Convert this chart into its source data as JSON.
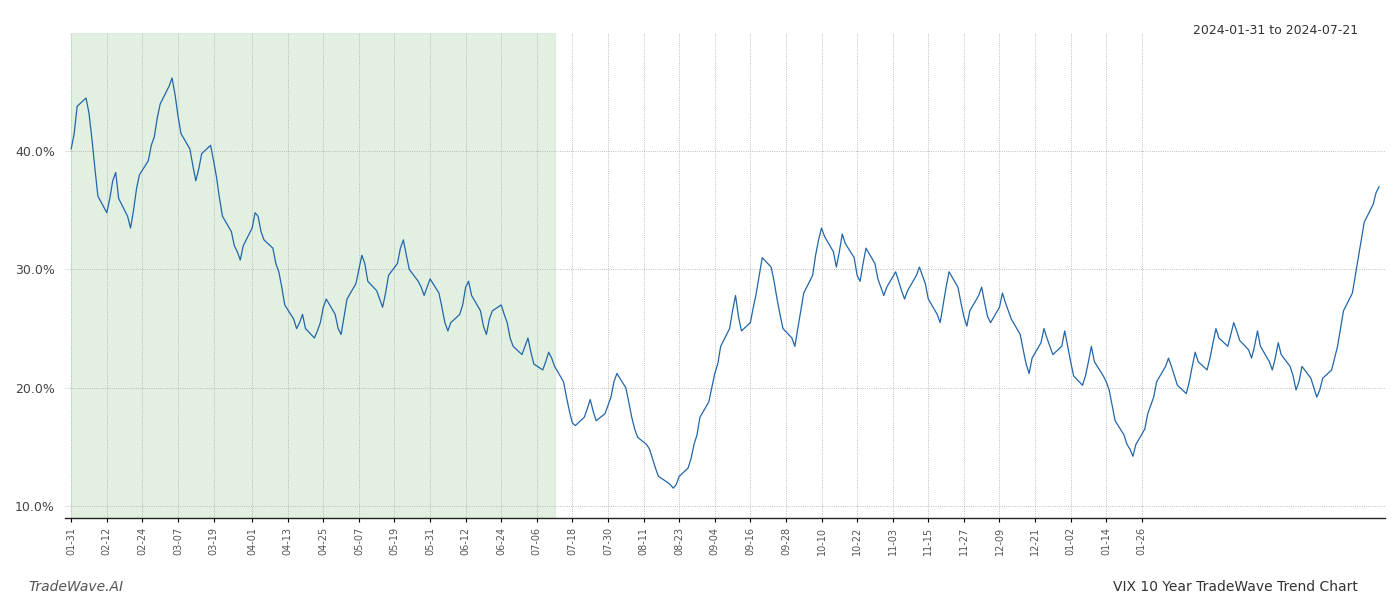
{
  "title_right": "2024-01-31 to 2024-07-21",
  "footer_left": "TradeWave.AI",
  "footer_right": "VIX 10 Year TradeWave Trend Chart",
  "line_color": "#2266aa",
  "shading_color": "#d6ead6",
  "shading_alpha": 0.7,
  "background_color": "#ffffff",
  "ylim": [
    9.0,
    50.0
  ],
  "yticks": [
    10.0,
    20.0,
    30.0,
    40.0
  ],
  "shade_start_date": "2024-01-31",
  "shade_end_date": "2024-07-12",
  "data_start_date": "2024-01-31",
  "xtick_labels": [
    "01-31",
    "02-12",
    "02-24",
    "03-07",
    "03-19",
    "04-01",
    "04-13",
    "04-25",
    "05-07",
    "05-19",
    "05-31",
    "06-12",
    "06-24",
    "07-06",
    "07-18",
    "07-30",
    "08-11",
    "08-23",
    "09-04",
    "09-16",
    "09-28",
    "10-10",
    "10-22",
    "11-03",
    "11-15",
    "11-27",
    "12-09",
    "12-21",
    "01-02",
    "01-14",
    "01-26"
  ],
  "xtick_dates": [
    "2024-01-31",
    "2024-02-12",
    "2024-02-24",
    "2024-03-07",
    "2024-03-19",
    "2024-04-01",
    "2024-04-13",
    "2024-04-25",
    "2024-05-07",
    "2024-05-19",
    "2024-05-31",
    "2024-06-12",
    "2024-06-24",
    "2024-07-06",
    "2024-07-18",
    "2024-07-30",
    "2024-08-11",
    "2024-08-23",
    "2024-09-04",
    "2024-09-16",
    "2024-09-28",
    "2024-10-10",
    "2024-10-22",
    "2024-11-03",
    "2024-11-15",
    "2024-11-27",
    "2024-12-09",
    "2024-12-21",
    "2025-01-02",
    "2025-01-14",
    "2025-01-26"
  ],
  "values": [
    40.2,
    41.5,
    43.8,
    44.5,
    43.2,
    41.0,
    38.5,
    36.2,
    34.8,
    36.0,
    37.5,
    38.2,
    36.0,
    34.5,
    33.5,
    35.0,
    36.8,
    38.0,
    39.2,
    40.5,
    41.2,
    42.8,
    44.0,
    45.5,
    46.2,
    44.8,
    43.0,
    41.5,
    40.2,
    38.8,
    37.5,
    38.5,
    39.8,
    40.5,
    39.2,
    37.8,
    36.0,
    34.5,
    33.2,
    32.0,
    31.5,
    30.8,
    32.0,
    33.5,
    34.8,
    34.5,
    33.2,
    32.5,
    31.8,
    30.5,
    29.8,
    28.5,
    27.0,
    25.8,
    25.0,
    25.5,
    26.2,
    25.0,
    24.2,
    24.8,
    25.5,
    26.8,
    27.5,
    26.2,
    25.0,
    24.5,
    26.0,
    27.5,
    28.8,
    30.0,
    31.2,
    30.5,
    29.0,
    28.2,
    27.5,
    26.8,
    28.0,
    29.5,
    30.5,
    31.8,
    32.5,
    31.2,
    30.0,
    29.0,
    28.5,
    27.8,
    28.5,
    29.2,
    28.0,
    26.8,
    25.5,
    24.8,
    25.5,
    26.2,
    27.0,
    28.5,
    29.0,
    27.8,
    26.5,
    25.2,
    24.5,
    25.8,
    26.5,
    27.0,
    26.2,
    25.5,
    24.2,
    23.5,
    22.8,
    23.5,
    24.2,
    23.0,
    22.0,
    21.5,
    22.2,
    23.0,
    22.5,
    21.8,
    20.5,
    19.2,
    18.0,
    17.0,
    16.8,
    17.5,
    18.2,
    19.0,
    18.0,
    17.2,
    17.8,
    18.5,
    19.2,
    20.5,
    21.2,
    20.0,
    18.8,
    17.5,
    16.5,
    15.8,
    15.2,
    14.8,
    14.0,
    13.2,
    12.5,
    12.0,
    11.8,
    11.5,
    11.8,
    12.5,
    13.2,
    14.0,
    15.2,
    16.0,
    17.5,
    18.8,
    20.0,
    21.2,
    22.0,
    23.5,
    25.0,
    26.5,
    27.8,
    26.0,
    24.8,
    25.5,
    26.8,
    28.0,
    29.5,
    31.0,
    30.2,
    29.0,
    27.5,
    26.2,
    25.0,
    24.2,
    23.5,
    25.0,
    26.5,
    28.0,
    29.5,
    31.2,
    32.5,
    33.5,
    32.8,
    31.5,
    30.2,
    31.5,
    33.0,
    32.2,
    31.0,
    29.5,
    29.0,
    30.5,
    31.8,
    30.5,
    29.2,
    28.5,
    27.8,
    28.5,
    29.8,
    29.0,
    28.2,
    27.5,
    28.2,
    29.5,
    30.2,
    29.5,
    28.8,
    27.5,
    26.2,
    25.5,
    27.0,
    28.5,
    29.8,
    28.5,
    27.2,
    26.0,
    25.2,
    26.5,
    27.8,
    28.5,
    27.2,
    26.0,
    25.5,
    26.8,
    28.0,
    27.2,
    26.5,
    25.8,
    24.5,
    23.2,
    22.0,
    21.2,
    22.5,
    23.8,
    25.0,
    24.2,
    23.5,
    22.8,
    23.5,
    24.8,
    23.5,
    22.2,
    21.0,
    20.2,
    21.0,
    22.2,
    23.5,
    22.2,
    21.0,
    20.5,
    19.8,
    18.5,
    17.2,
    16.0,
    15.2,
    14.8,
    14.2,
    15.2,
    16.5,
    17.8,
    18.5,
    19.2,
    20.5,
    21.8,
    22.5,
    21.8,
    21.0,
    20.2,
    19.5,
    20.5,
    21.8,
    23.0,
    22.2,
    21.5,
    22.5,
    23.8,
    25.0,
    24.2,
    23.5,
    24.5,
    25.5,
    24.8,
    24.0,
    23.2,
    22.5,
    23.5,
    24.8,
    23.5,
    22.2,
    21.5,
    22.5,
    23.8,
    22.8,
    21.8,
    21.0,
    19.8,
    20.5,
    21.8,
    20.8,
    20.0,
    19.2,
    19.8,
    20.8,
    21.5,
    22.5,
    23.5,
    25.0,
    26.5,
    28.0,
    29.5,
    31.0,
    32.5,
    34.0,
    35.5,
    36.5,
    37.0
  ]
}
